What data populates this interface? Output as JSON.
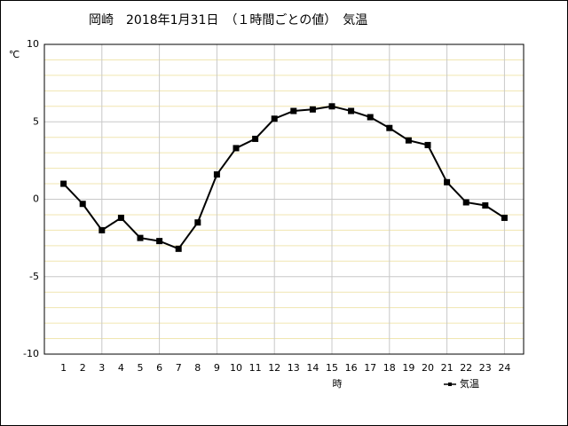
{
  "chart_data": {
    "type": "line",
    "title": "岡崎　2018年1月31日　（１時間ごとの値）　気温",
    "y_unit": "℃",
    "x_label": "時",
    "x": [
      1,
      2,
      3,
      4,
      5,
      6,
      7,
      8,
      9,
      10,
      11,
      12,
      13,
      14,
      15,
      16,
      17,
      18,
      19,
      20,
      21,
      22,
      23,
      24
    ],
    "series": [
      {
        "name": "気温",
        "color": "#000000",
        "values": [
          1.0,
          -0.3,
          -2.0,
          -1.2,
          -2.5,
          -2.7,
          -3.2,
          -1.5,
          1.6,
          3.3,
          3.9,
          5.2,
          5.7,
          5.8,
          6.0,
          5.7,
          5.3,
          4.6,
          3.8,
          3.5,
          1.1,
          -0.2,
          -0.4,
          -1.2
        ]
      }
    ],
    "xlim": [
      0,
      25
    ],
    "xticks": [
      1,
      2,
      3,
      4,
      5,
      6,
      7,
      8,
      9,
      10,
      11,
      12,
      13,
      14,
      15,
      16,
      17,
      18,
      19,
      20,
      21,
      22,
      23,
      24
    ],
    "xgrid": [
      3,
      6,
      9,
      12,
      15,
      18,
      21,
      24
    ],
    "ylim": [
      -10,
      10
    ],
    "yticks": [
      10,
      5,
      0,
      -5,
      -10
    ],
    "yminorticks": [
      -9,
      -8,
      -7,
      -6,
      -4,
      -3,
      -2,
      -1,
      1,
      2,
      3,
      4,
      6,
      7,
      8,
      9
    ],
    "grid": true
  }
}
